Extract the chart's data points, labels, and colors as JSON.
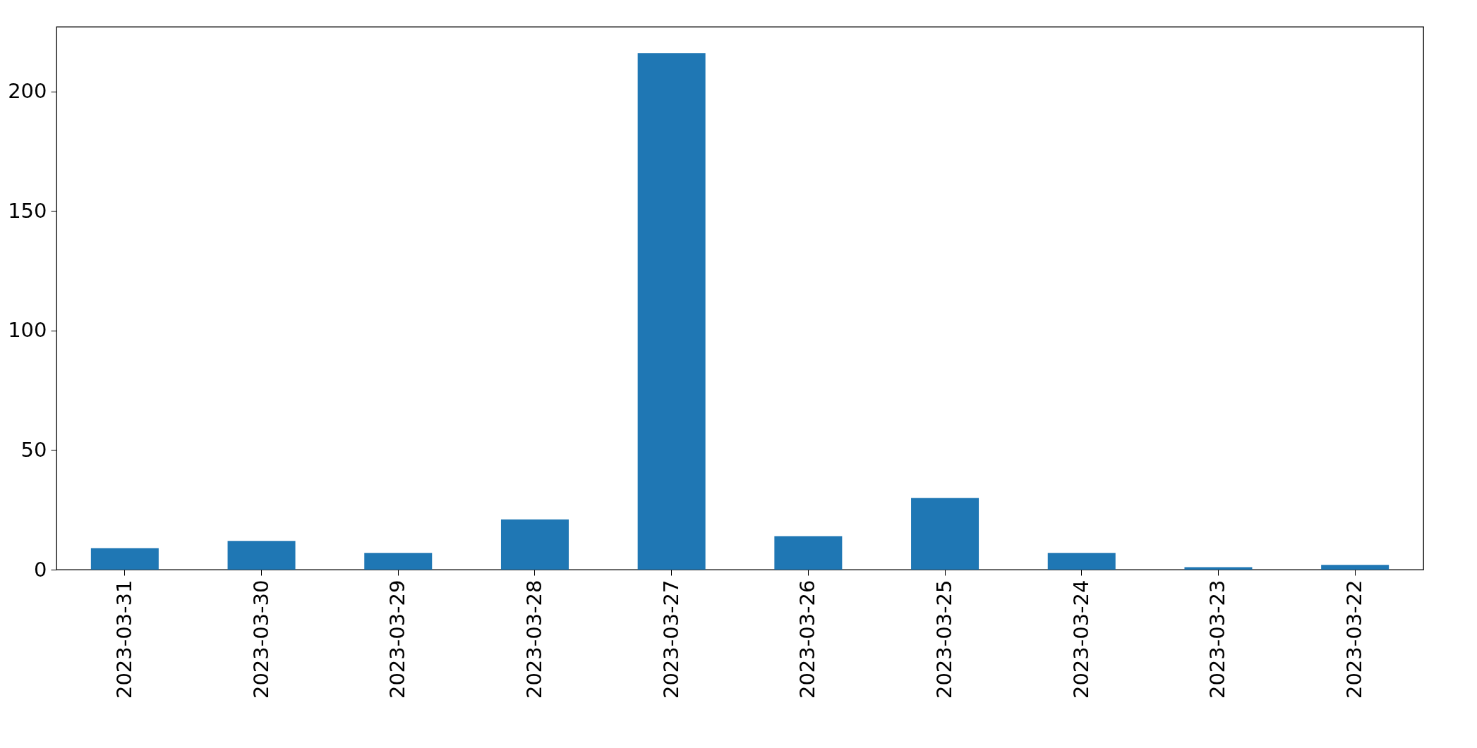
{
  "chart_data": {
    "type": "bar",
    "categories": [
      "2023-03-31",
      "2023-03-30",
      "2023-03-29",
      "2023-03-28",
      "2023-03-27",
      "2023-03-26",
      "2023-03-25",
      "2023-03-24",
      "2023-03-23",
      "2023-03-22"
    ],
    "values": [
      9,
      12,
      7,
      21,
      216,
      14,
      30,
      7,
      1,
      2
    ],
    "color": "#1f77b4",
    "ylim": [
      0,
      227
    ],
    "yticks": [
      0,
      50,
      100,
      150,
      200
    ],
    "grid": false
  }
}
